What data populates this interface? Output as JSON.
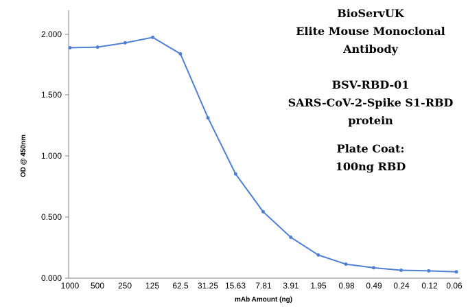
{
  "chart_data": {
    "type": "line",
    "x_categories": [
      "1000",
      "500",
      "250",
      "125",
      "62.5",
      "31.25",
      "15.63",
      "7.81",
      "3.91",
      "1.95",
      "0.98",
      "0.49",
      "0.24",
      "0.12",
      "0.06"
    ],
    "series": [
      {
        "values": [
          1.89,
          1.895,
          1.93,
          1.975,
          1.84,
          1.315,
          0.855,
          0.545,
          0.335,
          0.19,
          0.115,
          0.085,
          0.065,
          0.06,
          0.052
        ],
        "color": "#4f7fd1"
      }
    ],
    "xlabel": "mAb Amount (ng)",
    "ylabel": "OD @ 450nm",
    "ylim": [
      0,
      2.0
    ],
    "y_ticks": [
      "0.000",
      "0.500",
      "1.000",
      "1.500",
      "2.000"
    ],
    "grid": false,
    "annotation_lines": [
      "BioServUK",
      "Elite Mouse Monoclonal",
      "Antibody",
      "BSV-RBD-01",
      "SARS-CoV-2-Spike S1-RBD",
      "protein",
      "Plate Coat:",
      "100ng RBD"
    ]
  }
}
